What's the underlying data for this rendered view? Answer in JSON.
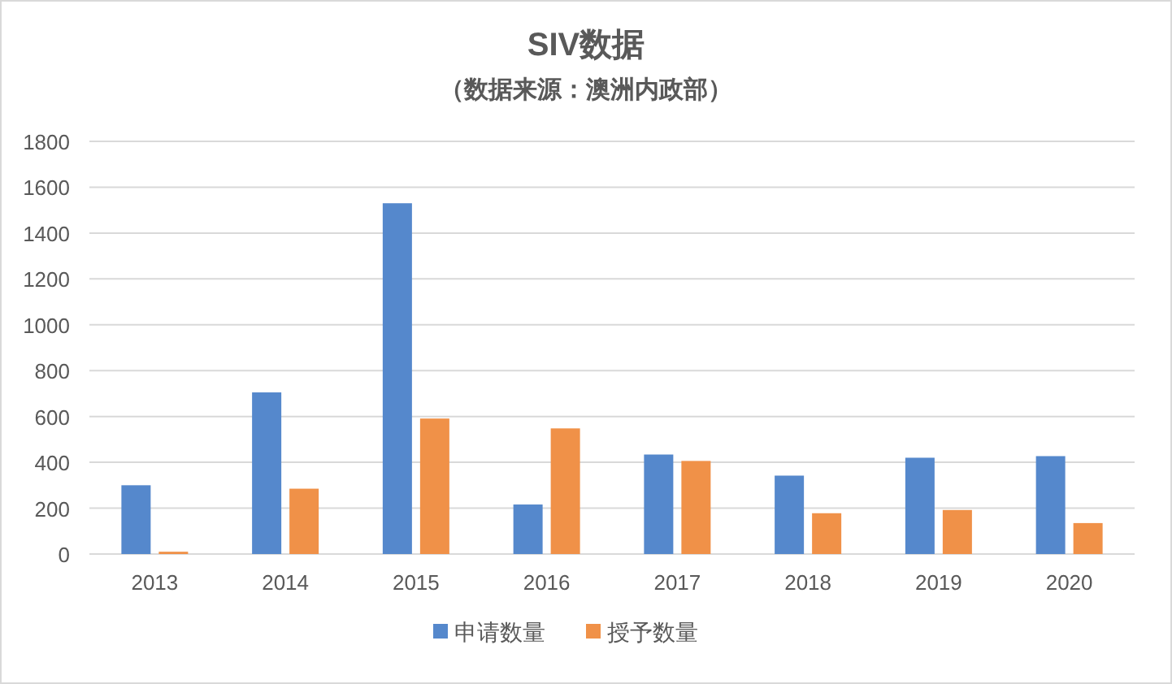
{
  "chart_data": {
    "type": "bar",
    "title": "SIV数据",
    "subtitle": "（数据来源：澳洲内政部）",
    "categories": [
      "2013",
      "2014",
      "2015",
      "2016",
      "2017",
      "2018",
      "2019",
      "2020"
    ],
    "series": [
      {
        "name": "申请数量",
        "color": "#5588cc",
        "values": [
          300,
          705,
          1530,
          216,
          434,
          342,
          420,
          427
        ]
      },
      {
        "name": "授予数量",
        "color": "#f09148",
        "values": [
          10,
          285,
          591,
          548,
          406,
          178,
          192,
          135
        ]
      }
    ],
    "ylim": [
      0,
      1800
    ],
    "yticks": [
      0,
      200,
      400,
      600,
      800,
      1000,
      1200,
      1400,
      1600,
      1800
    ],
    "grid": "y",
    "legend": "bottom"
  }
}
